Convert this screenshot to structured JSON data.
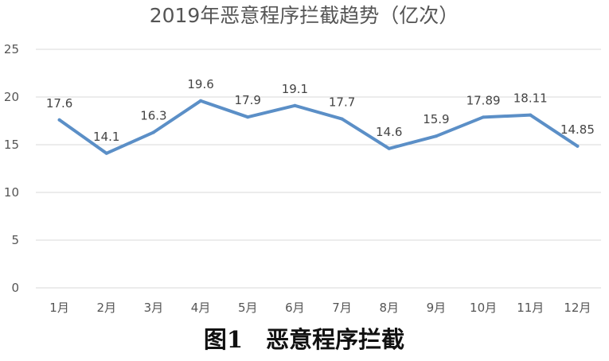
{
  "chart_data": {
    "type": "line",
    "title": "2019年恶意程序拦截趋势（亿次）",
    "categories": [
      "1月",
      "2月",
      "3月",
      "4月",
      "5月",
      "6月",
      "7月",
      "8月",
      "9月",
      "10月",
      "11月",
      "12月"
    ],
    "series": [
      {
        "values": [
          17.6,
          14.1,
          16.3,
          19.6,
          17.9,
          19.1,
          17.7,
          14.6,
          15.9,
          17.89,
          18.11,
          14.85
        ],
        "data_labels": [
          "17.6",
          "14.1",
          "16.3",
          "19.6",
          "17.9",
          "19.1",
          "17.7",
          "14.6",
          "15.9",
          "17.89",
          "18.11",
          "14.85"
        ],
        "color": "#5b8fc7"
      }
    ],
    "ylim": [
      0,
      25
    ],
    "yticks": [
      "0",
      "5",
      "10",
      "15",
      "20",
      "25"
    ],
    "grid": true,
    "legend": "none"
  },
  "caption": "图1　恶意程序拦截"
}
